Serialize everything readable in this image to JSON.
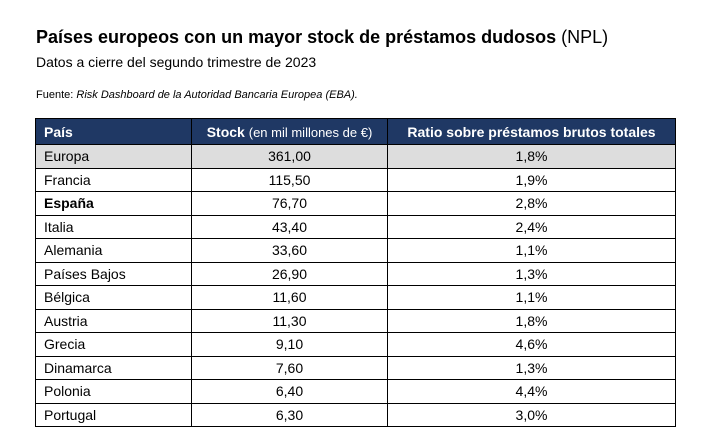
{
  "title": {
    "main": "Países europeos con un mayor stock de préstamos dudosos",
    "suffix": "(NPL)"
  },
  "subtitle": "Datos a cierre del segundo trimestre de 2023",
  "source": {
    "prefix": "Fuente:",
    "name": "Risk Dashboard de la Autoridad Bancaria Europea (EBA)."
  },
  "table": {
    "headers": {
      "country": "País",
      "stock": "Stock",
      "stock_unit": "(en mil millones de €)",
      "ratio": "Ratio sobre préstamos brutos totales"
    },
    "rows": [
      {
        "country": "Europa",
        "stock": "361,00",
        "ratio": "1,8%",
        "highlight": true
      },
      {
        "country": "Francia",
        "stock": "115,50",
        "ratio": "1,9%"
      },
      {
        "country": "España",
        "stock": "76,70",
        "ratio": "2,8%",
        "bold": true
      },
      {
        "country": "Italia",
        "stock": "43,40",
        "ratio": "2,4%"
      },
      {
        "country": "Alemania",
        "stock": "33,60",
        "ratio": "1,1%"
      },
      {
        "country": "Países Bajos",
        "stock": "26,90",
        "ratio": "1,3%"
      },
      {
        "country": "Bélgica",
        "stock": "11,60",
        "ratio": "1,1%"
      },
      {
        "country": "Austria",
        "stock": "11,30",
        "ratio": "1,8%"
      },
      {
        "country": "Grecia",
        "stock": "9,10",
        "ratio": "4,6%"
      },
      {
        "country": "Dinamarca",
        "stock": "7,60",
        "ratio": "1,3%"
      },
      {
        "country": "Polonia",
        "stock": "6,40",
        "ratio": "4,4%"
      },
      {
        "country": "Portugal",
        "stock": "6,30",
        "ratio": "3,0%"
      }
    ]
  },
  "colors": {
    "header_bg": "#1f3864",
    "highlight_row_bg": "#dddddd"
  }
}
